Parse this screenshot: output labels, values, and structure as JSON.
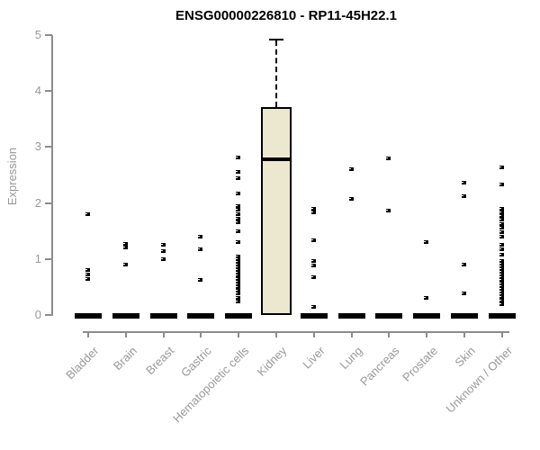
{
  "colors": {
    "background": "#ffffff",
    "title_color": "#000000",
    "axis_line": "#8c8c8c",
    "axis_text": "#999999",
    "box_fill": "#ece8d0",
    "ink": "#000000"
  },
  "chart_data": {
    "type": "boxplot",
    "title": "ENSG00000226810 - RP11-45H22.1",
    "ylabel": "Expression",
    "xlabel": "",
    "ylim": [
      0,
      5
    ],
    "yticks": [
      0,
      1,
      2,
      3,
      4,
      5
    ],
    "grid": false,
    "legend": "none",
    "point_marker": "small-black-square",
    "categories": [
      "Bladder",
      "Brain",
      "Breast",
      "Gastric",
      "Hematopoietic cells",
      "Kidney",
      "Liver",
      "Lung",
      "Pancreas",
      "Prostate",
      "Skin",
      "Unknown / Other"
    ],
    "series": [
      {
        "category": "Bladder",
        "q1": 0,
        "median": 0,
        "q3": 0,
        "whisker_low": 0,
        "whisker_high": 0,
        "outliers": [
          1.8,
          0.8,
          0.72,
          0.65
        ]
      },
      {
        "category": "Brain",
        "q1": 0,
        "median": 0,
        "q3": 0,
        "whisker_low": 0,
        "whisker_high": 0,
        "outliers": [
          1.27,
          1.2,
          0.9
        ]
      },
      {
        "category": "Breast",
        "q1": 0,
        "median": 0,
        "q3": 0,
        "whisker_low": 0,
        "whisker_high": 0,
        "outliers": [
          1.25,
          1.14,
          1.0
        ]
      },
      {
        "category": "Gastric",
        "q1": 0,
        "median": 0,
        "q3": 0,
        "whisker_low": 0,
        "whisker_high": 0,
        "outliers": [
          1.4,
          1.17,
          0.62
        ]
      },
      {
        "category": "Hematopoietic cells",
        "q1": 0,
        "median": 0,
        "q3": 0,
        "whisker_low": 0,
        "whisker_high": 0,
        "outliers": [
          2.82,
          2.55,
          2.45,
          2.17,
          1.95,
          1.88,
          1.8,
          1.72,
          1.65,
          1.5,
          1.3,
          1.05,
          1.0,
          0.95,
          0.9,
          0.85,
          0.8,
          0.75,
          0.7,
          0.65,
          0.6,
          0.55,
          0.5,
          0.44,
          0.38,
          0.3,
          0.24
        ]
      },
      {
        "category": "Kidney",
        "q1": 0,
        "median": 2.78,
        "q3": 3.72,
        "whisker_low": 0,
        "whisker_high": 4.93,
        "outliers": []
      },
      {
        "category": "Liver",
        "q1": 0,
        "median": 0,
        "q3": 0,
        "whisker_low": 0,
        "whisker_high": 0,
        "outliers": [
          1.9,
          1.84,
          1.33,
          0.97,
          0.88,
          0.68,
          0.15
        ]
      },
      {
        "category": "Lung",
        "q1": 0,
        "median": 0,
        "q3": 0,
        "whisker_low": 0,
        "whisker_high": 0,
        "outliers": [
          2.6,
          2.07
        ]
      },
      {
        "category": "Pancreas",
        "q1": 0,
        "median": 0,
        "q3": 0,
        "whisker_low": 0,
        "whisker_high": 0,
        "outliers": [
          2.8,
          1.86
        ]
      },
      {
        "category": "Prostate",
        "q1": 0,
        "median": 0,
        "q3": 0,
        "whisker_low": 0,
        "whisker_high": 0,
        "outliers": [
          1.3,
          0.3
        ]
      },
      {
        "category": "Skin",
        "q1": 0,
        "median": 0,
        "q3": 0,
        "whisker_low": 0,
        "whisker_high": 0,
        "outliers": [
          2.37,
          2.12,
          0.9,
          0.38
        ]
      },
      {
        "category": "Unknown / Other",
        "q1": 0,
        "median": 0,
        "q3": 0,
        "whisker_low": 0,
        "whisker_high": 0,
        "outliers": [
          2.64,
          2.33,
          1.9,
          1.83,
          1.77,
          1.7,
          1.63,
          1.56,
          1.48,
          1.4,
          1.25,
          1.17,
          1.08,
          0.97,
          0.92,
          0.87,
          0.82,
          0.77,
          0.72,
          0.67,
          0.62,
          0.57,
          0.52,
          0.47,
          0.42,
          0.37,
          0.32,
          0.26,
          0.2
        ]
      }
    ]
  }
}
